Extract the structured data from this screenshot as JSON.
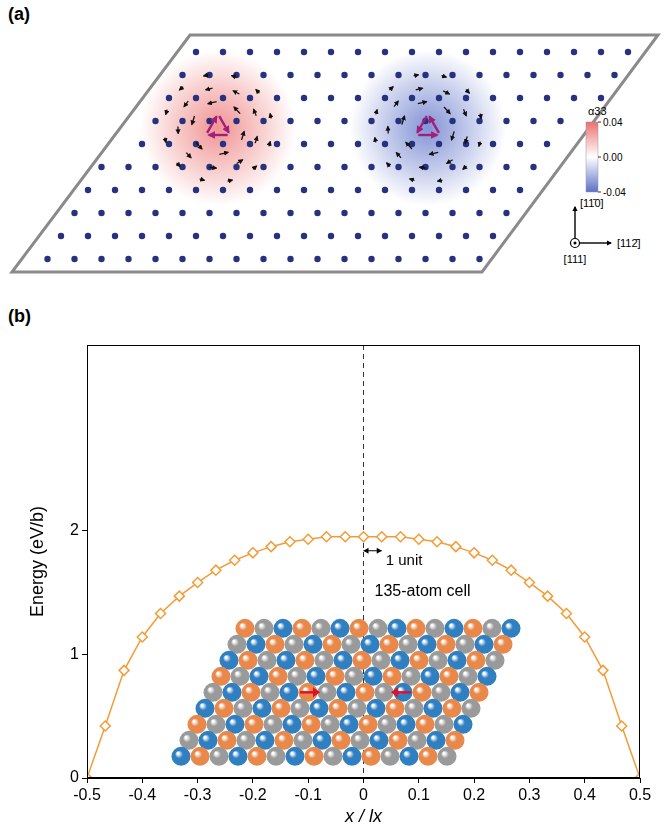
{
  "diagram": {
    "panel_label": "(a)",
    "colorbar": {
      "label": "α33",
      "range": [
        -0.04,
        0.04
      ],
      "ticks": [
        {
          "value": 0.04,
          "label": "0.04"
        },
        {
          "value": 0,
          "label": "0.00"
        },
        {
          "value": -0.04,
          "label": "-0.04"
        }
      ]
    },
    "cores": [
      {
        "alpha33": 0.04
      },
      {
        "alpha33": -0.04
      }
    ],
    "directions": {
      "vertical": "[11̄0]",
      "out_of_plane": "[111]",
      "horizontal": "[112̄]"
    }
  },
  "chart_data": {
    "panel_label": "(b)",
    "type": "line",
    "x_label": "x / lx",
    "y_label": "Energy (eV/b)",
    "x": [
      -0.5,
      -0.467,
      -0.433,
      -0.4,
      -0.367,
      -0.333,
      -0.3,
      -0.267,
      -0.233,
      -0.2,
      -0.167,
      -0.133,
      -0.1,
      -0.067,
      -0.033,
      0,
      0.033,
      0.067,
      0.1,
      0.133,
      0.167,
      0.2,
      0.233,
      0.267,
      0.3,
      0.333,
      0.367,
      0.4,
      0.433,
      0.467,
      0.5
    ],
    "values": [
      0,
      0.42,
      0.87,
      1.14,
      1.33,
      1.47,
      1.58,
      1.68,
      1.76,
      1.82,
      1.87,
      1.91,
      1.93,
      1.95,
      1.95,
      1.95,
      1.95,
      1.95,
      1.93,
      1.91,
      1.87,
      1.82,
      1.76,
      1.68,
      1.58,
      1.47,
      1.33,
      1.14,
      0.87,
      0.42,
      0
    ],
    "color": "#f39c37",
    "marker": "diamond",
    "xlim": [
      -0.5,
      0.5
    ],
    "xticks": [
      -0.5,
      -0.4,
      -0.3,
      -0.2,
      -0.1,
      0,
      0.1,
      0.2,
      0.3,
      0.4,
      0.5
    ],
    "ylim": [
      0,
      3.5
    ],
    "yticks": [
      0,
      1,
      2
    ],
    "grid": false,
    "vlines": [
      0
    ],
    "annotations": [
      "1 unit"
    ],
    "inset_label": "135-atom cell"
  }
}
